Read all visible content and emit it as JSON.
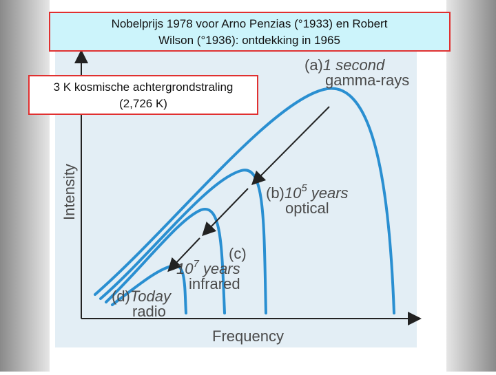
{
  "title": {
    "lines": [
      "Nobelprijs 1978 voor Arno Penzias (°1933) en Robert",
      "Wilson (°1936): ontdekking in 1965"
    ]
  },
  "callout": {
    "lines": [
      "3 K kosmische achtergrondstraling",
      "(2,726 K)"
    ]
  },
  "diagram": {
    "y_axis_label": "Intensity",
    "x_axis_label": "Frequency",
    "curves": [
      {
        "tag": "(a)",
        "line1": "1 second",
        "line2": "gamma-rays"
      },
      {
        "tag": "(b)",
        "base": "10",
        "exp": "5",
        "unit": "years",
        "line2": "optical"
      },
      {
        "tag": "(c)",
        "base": "10",
        "exp": "7",
        "unit": "years",
        "line2": "infrared"
      },
      {
        "tag": "(d)",
        "line1": "Today",
        "line2": "radio"
      }
    ]
  }
}
